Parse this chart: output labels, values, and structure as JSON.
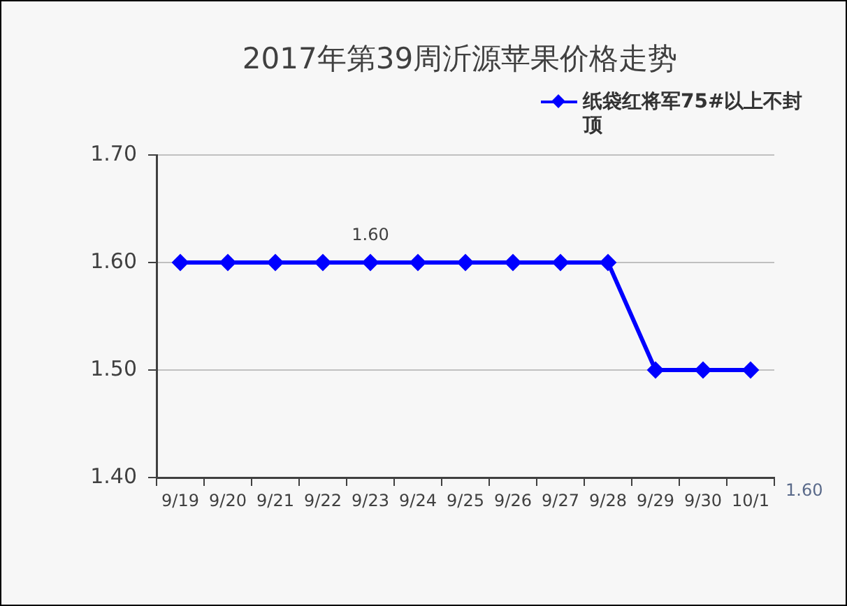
{
  "chart_data": {
    "type": "line",
    "title": "2017年第39周沂源苹果价格走势",
    "categories": [
      "9/19",
      "9/20",
      "9/21",
      "9/22",
      "9/23",
      "9/24",
      "9/25",
      "9/26",
      "9/27",
      "9/28",
      "9/29",
      "9/30",
      "10/1"
    ],
    "series": [
      {
        "name": "纸袋红将军75#以上不封顶",
        "color": "#0000ff",
        "values": [
          1.6,
          1.6,
          1.6,
          1.6,
          1.6,
          1.6,
          1.6,
          1.6,
          1.6,
          1.6,
          1.5,
          1.5,
          1.5
        ]
      }
    ],
    "ylim": [
      1.4,
      1.7
    ],
    "yticks": [
      {
        "value": 1.4,
        "label": "1.40"
      },
      {
        "value": 1.5,
        "label": "1.50"
      },
      {
        "value": 1.6,
        "label": "1.60"
      },
      {
        "value": 1.7,
        "label": "1.70"
      }
    ],
    "grid": "y",
    "legend": "top right",
    "marker": "diamond",
    "annotations": [
      {
        "text": "1.60",
        "x": "9/23",
        "y": 1.6
      },
      "1.60"
    ]
  }
}
